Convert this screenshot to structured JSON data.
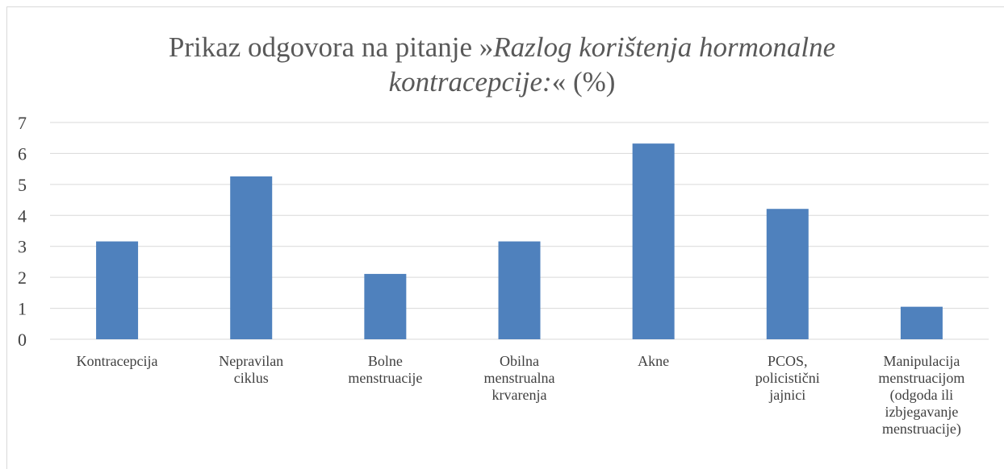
{
  "chart_data": {
    "type": "bar",
    "title_lines": [
      [
        "Prikaz odgovora na pitanje »",
        "Razlog korištenja hormonalne"
      ],
      [
        "kontracepcije:",
        "« (%)"
      ]
    ],
    "categories": [
      [
        "Kontracepcija"
      ],
      [
        "Nepravilan",
        "ciklus"
      ],
      [
        "Bolne",
        "menstruacije"
      ],
      [
        "Obilna",
        "menstrualna",
        "krvarenja"
      ],
      [
        "Akne"
      ],
      [
        "PCOS,",
        "policistični",
        "jajnici"
      ],
      [
        "Manipulacija",
        "menstruacijom",
        "(odgoda ili",
        "izbjegavanje",
        "menstruacije)"
      ]
    ],
    "values": [
      3.16,
      5.26,
      2.11,
      3.16,
      6.32,
      4.21,
      1.05
    ],
    "color": "#4f81bd",
    "ylim": [
      0,
      7
    ],
    "yticks": [
      0,
      1,
      2,
      3,
      4,
      5,
      6,
      7
    ],
    "grid": true
  }
}
